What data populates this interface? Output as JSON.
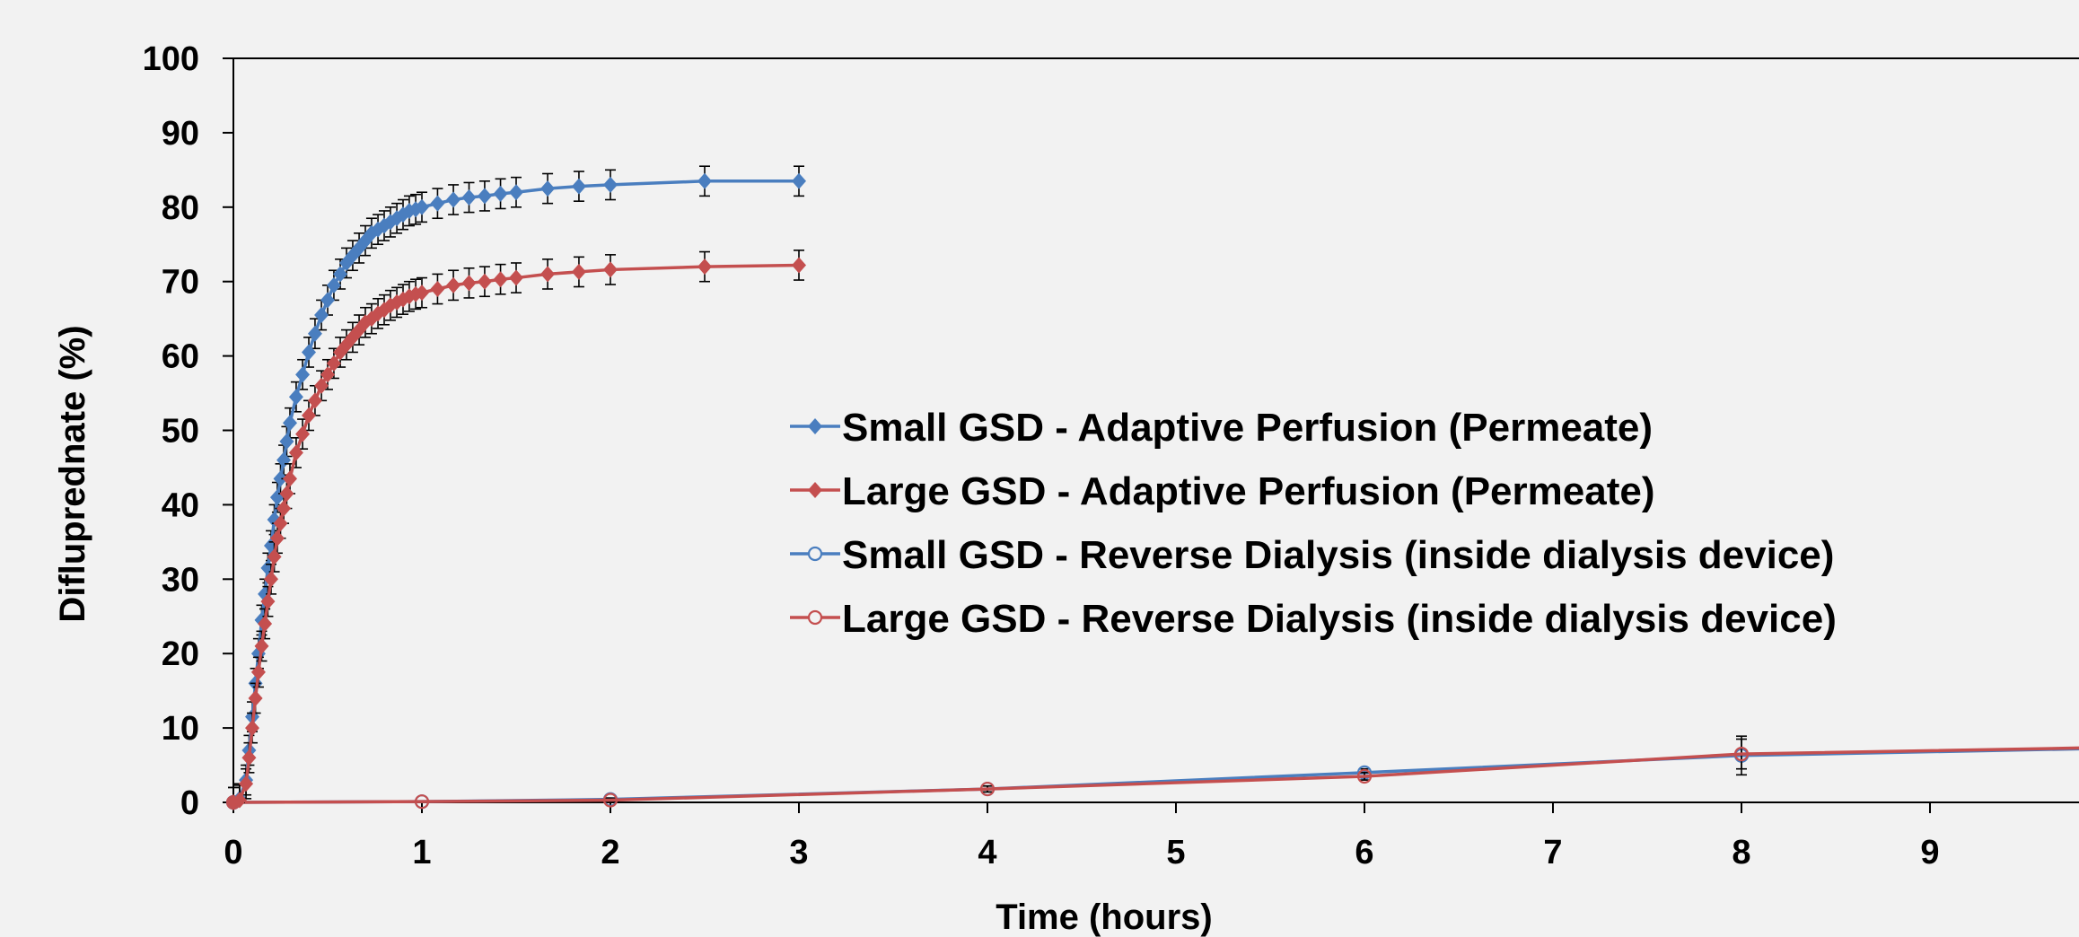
{
  "chart_data": {
    "type": "line",
    "title": "",
    "xlabel": "Time (hours)",
    "ylabel": "Difluprednate (%)",
    "xlim": [
      0,
      10
    ],
    "ylim": [
      0,
      100
    ],
    "xticks": [
      0,
      1,
      2,
      3,
      4,
      5,
      6,
      7,
      8,
      9
    ],
    "yticks": [
      0,
      10,
      20,
      30,
      40,
      50,
      60,
      70,
      80,
      90,
      100
    ],
    "legend_position": "center-right",
    "grid": false,
    "series": [
      {
        "name": "Small GSD - Adaptive Perfusion (Permeate)",
        "color": "#4a7ebf",
        "marker": "diamond-filled",
        "x": [
          0,
          0.033,
          0.067,
          0.083,
          0.1,
          0.117,
          0.133,
          0.15,
          0.167,
          0.183,
          0.2,
          0.217,
          0.233,
          0.25,
          0.267,
          0.283,
          0.3,
          0.333,
          0.367,
          0.4,
          0.433,
          0.467,
          0.5,
          0.533,
          0.567,
          0.6,
          0.633,
          0.667,
          0.7,
          0.733,
          0.767,
          0.8,
          0.833,
          0.867,
          0.9,
          0.933,
          0.967,
          1.0,
          1.083,
          1.167,
          1.25,
          1.333,
          1.417,
          1.5,
          1.667,
          1.833,
          2.0,
          2.5,
          3.0
        ],
        "y": [
          0,
          0.5,
          3.0,
          7.0,
          11.5,
          16.0,
          20.0,
          24.5,
          28.0,
          31.5,
          34.5,
          38.0,
          41.0,
          43.5,
          46.0,
          48.5,
          51.0,
          54.5,
          57.5,
          60.5,
          63.0,
          65.5,
          67.5,
          69.5,
          71.0,
          72.5,
          73.5,
          74.5,
          75.5,
          76.5,
          77.0,
          77.5,
          78.0,
          78.5,
          79.0,
          79.5,
          79.7,
          80.0,
          80.5,
          81.0,
          81.3,
          81.5,
          81.8,
          82.0,
          82.5,
          82.8,
          83.0,
          83.5,
          83.5
        ],
        "error": 2.0
      },
      {
        "name": "Large GSD - Adaptive Perfusion (Permeate)",
        "color": "#c44f4f",
        "marker": "diamond-filled",
        "x": [
          0,
          0.033,
          0.067,
          0.083,
          0.1,
          0.117,
          0.133,
          0.15,
          0.167,
          0.183,
          0.2,
          0.217,
          0.233,
          0.25,
          0.267,
          0.283,
          0.3,
          0.333,
          0.367,
          0.4,
          0.433,
          0.467,
          0.5,
          0.533,
          0.567,
          0.6,
          0.633,
          0.667,
          0.7,
          0.733,
          0.767,
          0.8,
          0.833,
          0.867,
          0.9,
          0.933,
          0.967,
          1.0,
          1.083,
          1.167,
          1.25,
          1.333,
          1.417,
          1.5,
          1.667,
          1.833,
          2.0,
          2.5,
          3.0
        ],
        "y": [
          0,
          0.3,
          2.5,
          6.0,
          10.0,
          14.0,
          17.5,
          21.0,
          24.0,
          27.0,
          30.0,
          33.0,
          35.5,
          37.5,
          39.5,
          41.5,
          43.5,
          47.0,
          49.5,
          52.0,
          54.0,
          56.0,
          57.5,
          59.0,
          60.5,
          61.5,
          62.5,
          63.5,
          64.5,
          65.0,
          65.7,
          66.2,
          66.8,
          67.2,
          67.6,
          68.0,
          68.3,
          68.5,
          69.0,
          69.5,
          69.8,
          70.0,
          70.3,
          70.5,
          71.0,
          71.3,
          71.6,
          72.0,
          72.2
        ],
        "error": 2.0
      },
      {
        "name": "Small GSD - Reverse Dialysis (inside dialysis device)",
        "color": "#4a7ebf",
        "marker": "circle-open",
        "x": [
          0,
          1,
          2,
          4,
          6,
          8,
          10
        ],
        "y": [
          0,
          0.1,
          0.4,
          1.8,
          4.0,
          6.3,
          7.3
        ],
        "error": [
          0,
          0.1,
          0.2,
          0.4,
          0.5,
          2.6,
          0.8
        ]
      },
      {
        "name": "Large GSD - Reverse Dialysis (inside dialysis device)",
        "color": "#c44f4f",
        "marker": "circle-open",
        "x": [
          0,
          1,
          2,
          4,
          6,
          8,
          10
        ],
        "y": [
          0,
          0.1,
          0.3,
          1.8,
          3.5,
          6.5,
          7.4
        ],
        "error": [
          0,
          0.1,
          0.2,
          0.4,
          0.5,
          2.0,
          0.8
        ]
      }
    ]
  }
}
